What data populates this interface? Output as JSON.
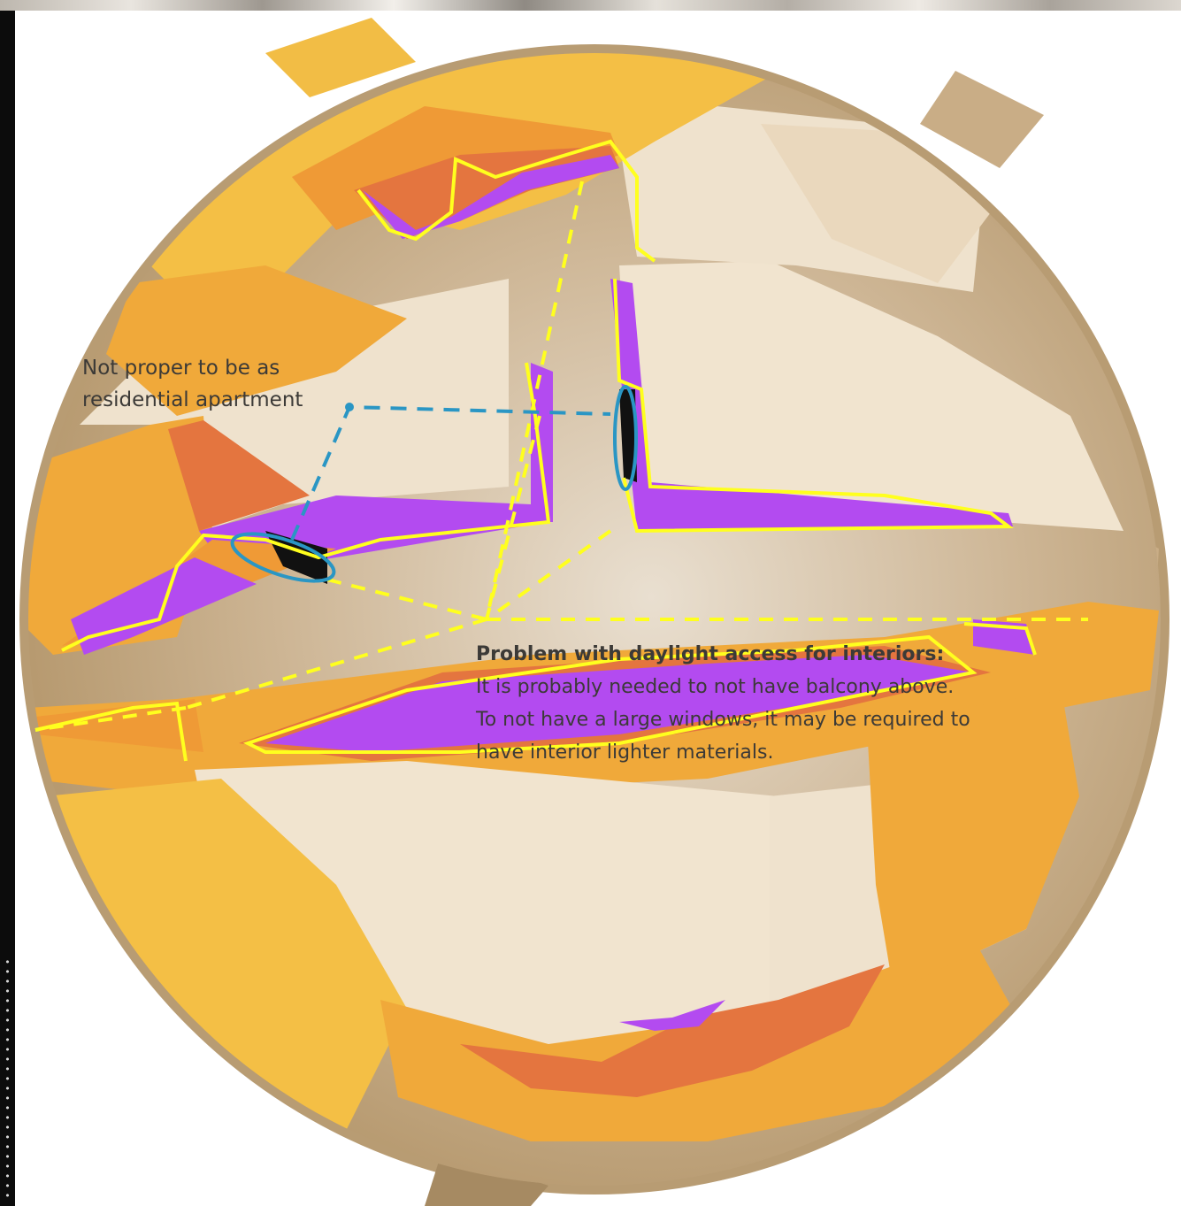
{
  "annotation_residential": {
    "line1": "Not proper to be as",
    "line2": "residential apartment"
  },
  "annotation_daylight": {
    "title": "Problem with daylight access for interiors:",
    "line1": "It is probably needed to not have balcony above.",
    "line2": "To not have a large windows, it may be required to",
    "line3": "have interior lighter materials."
  },
  "colors": {
    "facade": "#efe2cd",
    "floor_sand": "#c9ad86",
    "daylight_high": "#f4bf45",
    "daylight_mid": "#ef9a36",
    "daylight_low": "#e4753f",
    "daylight_lowest": "#b34bf0",
    "outline_yellow": "#ffff1e",
    "outline_blue": "#2a96c4"
  },
  "icons": {
    "left_strip_chain": "chain-link-icon"
  }
}
